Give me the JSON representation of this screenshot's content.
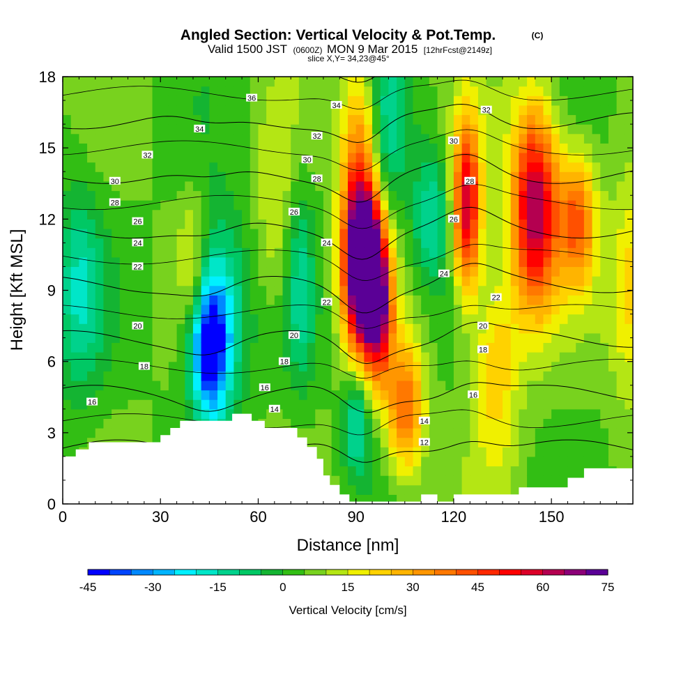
{
  "chart_data": {
    "type": "heatmap",
    "title": "Angled Section: Vertical Velocity & Pot.Temp.",
    "title_mark": "(C)",
    "subtitle_parts": [
      "Valid 1500 JST",
      "(0600Z)",
      "MON 9 Mar 2015",
      "[12hrFcst@2149z]"
    ],
    "slice_label": "slice X,Y= 34,23@45°",
    "xlabel": "Distance [nm]",
    "ylabel": "Height [Kft MSL]",
    "xlim": [
      0,
      175
    ],
    "ylim": [
      0,
      18
    ],
    "x_ticks": [
      0,
      30,
      60,
      90,
      120,
      150
    ],
    "y_ticks": [
      0,
      3,
      6,
      9,
      12,
      15,
      18
    ],
    "colorbar": {
      "label": "Vertical Velocity [cm/s]",
      "ticks": [
        -45,
        -30,
        -15,
        0,
        15,
        30,
        45,
        60,
        75
      ],
      "min": -45,
      "max": 75,
      "step": 5,
      "colors": [
        "#0000ff",
        "#0044ff",
        "#0088ff",
        "#00b4ff",
        "#00f0ff",
        "#00e6c8",
        "#00d28c",
        "#00c864",
        "#14b432",
        "#32be14",
        "#78d21e",
        "#b4e614",
        "#f0f000",
        "#ffd200",
        "#ffb400",
        "#ff9600",
        "#ff7800",
        "#ff5000",
        "#ff2800",
        "#ff0000",
        "#dc0028",
        "#b40050",
        "#8c0078",
        "#5a0096"
      ]
    },
    "velocity_cells": [
      {
        "x": 5,
        "y": 9,
        "v": -20,
        "sx": 5,
        "sy": 3
      },
      {
        "x": 45,
        "y": 6.5,
        "v": -42,
        "sx": 4,
        "sy": 2
      },
      {
        "x": 48,
        "y": 8,
        "v": -25,
        "sx": 6,
        "sy": 3
      },
      {
        "x": 73,
        "y": 9,
        "v": -15,
        "sx": 3,
        "sy": 3
      },
      {
        "x": 90,
        "y": 3.5,
        "v": -25,
        "sx": 3,
        "sy": 1.5
      },
      {
        "x": 100,
        "y": 16,
        "v": -15,
        "sx": 4,
        "sy": 3
      },
      {
        "x": 113,
        "y": 12,
        "v": -20,
        "sx": 4,
        "sy": 2
      },
      {
        "x": 93,
        "y": 10,
        "v": 75,
        "sx": 4,
        "sy": 2
      },
      {
        "x": 91,
        "y": 12,
        "v": 45,
        "sx": 4,
        "sy": 4
      },
      {
        "x": 97,
        "y": 8,
        "v": 45,
        "sx": 3,
        "sy": 2
      },
      {
        "x": 105,
        "y": 4,
        "v": 35,
        "sx": 4,
        "sy": 2
      },
      {
        "x": 124,
        "y": 12.5,
        "v": 55,
        "sx": 3,
        "sy": 2.5
      },
      {
        "x": 145,
        "y": 12.5,
        "v": 60,
        "sx": 5,
        "sy": 3
      },
      {
        "x": 158,
        "y": 12,
        "v": 35,
        "sx": 4,
        "sy": 2
      },
      {
        "x": 133,
        "y": 6,
        "v": 20,
        "sx": 5,
        "sy": 3
      },
      {
        "x": 175,
        "y": 9,
        "v": 20,
        "sx": 5,
        "sy": 3
      },
      {
        "x": 40,
        "y": 10,
        "v": 15,
        "sx": 3,
        "sy": 2
      },
      {
        "x": 65,
        "y": 12,
        "v": 10,
        "sx": 4,
        "sy": 3
      }
    ],
    "terrain": [
      [
        0,
        2
      ],
      [
        4,
        2
      ],
      [
        4,
        2.3
      ],
      [
        8,
        2.3
      ],
      [
        8,
        2.6
      ],
      [
        30,
        2.6
      ],
      [
        30,
        2.9
      ],
      [
        33,
        2.9
      ],
      [
        33,
        3.2
      ],
      [
        36,
        3.2
      ],
      [
        36,
        3.5
      ],
      [
        52,
        3.5
      ],
      [
        52,
        3.8
      ],
      [
        58,
        3.8
      ],
      [
        58,
        3.5
      ],
      [
        62,
        3.5
      ],
      [
        62,
        3.2
      ],
      [
        72,
        3.2
      ],
      [
        72,
        2.8
      ],
      [
        75,
        2.8
      ],
      [
        75,
        2.4
      ],
      [
        78,
        2.4
      ],
      [
        78,
        1.9
      ],
      [
        80,
        1.9
      ],
      [
        80,
        1.2
      ],
      [
        82,
        1.2
      ],
      [
        82,
        0.8
      ],
      [
        85,
        0.8
      ],
      [
        85,
        0.4
      ],
      [
        88,
        0.4
      ],
      [
        88,
        0.1
      ],
      [
        110,
        0.1
      ],
      [
        110,
        0.4
      ],
      [
        115,
        0.4
      ],
      [
        115,
        0.1
      ],
      [
        120,
        0.1
      ],
      [
        120,
        0.4
      ],
      [
        140,
        0.4
      ],
      [
        140,
        0.7
      ],
      [
        155,
        0.7
      ],
      [
        155,
        1.1
      ],
      [
        160,
        1.1
      ],
      [
        160,
        1.5
      ],
      [
        175,
        1.5
      ]
    ],
    "theta_levels": [
      12,
      14,
      16,
      18,
      20,
      22,
      24,
      26,
      28,
      30,
      32,
      34,
      36
    ],
    "theta_labels": [
      {
        "text": "36",
        "x": 58,
        "y": 17.1
      },
      {
        "text": "34",
        "x": 42,
        "y": 15.8
      },
      {
        "text": "34",
        "x": 84,
        "y": 16.8
      },
      {
        "text": "32",
        "x": 26,
        "y": 14.7
      },
      {
        "text": "32",
        "x": 78,
        "y": 15.5
      },
      {
        "text": "32",
        "x": 130,
        "y": 16.6
      },
      {
        "text": "30",
        "x": 16,
        "y": 13.6
      },
      {
        "text": "30",
        "x": 75,
        "y": 14.5
      },
      {
        "text": "30",
        "x": 120,
        "y": 15.3
      },
      {
        "text": "28",
        "x": 16,
        "y": 12.7
      },
      {
        "text": "28",
        "x": 78,
        "y": 13.7
      },
      {
        "text": "28",
        "x": 125,
        "y": 13.6
      },
      {
        "text": "26",
        "x": 23,
        "y": 11.9
      },
      {
        "text": "26",
        "x": 71,
        "y": 12.3
      },
      {
        "text": "26",
        "x": 120,
        "y": 12.0
      },
      {
        "text": "24",
        "x": 23,
        "y": 11.0
      },
      {
        "text": "24",
        "x": 81,
        "y": 11.0
      },
      {
        "text": "24",
        "x": 117,
        "y": 9.7
      },
      {
        "text": "22",
        "x": 23,
        "y": 10.0
      },
      {
        "text": "22",
        "x": 81,
        "y": 8.5
      },
      {
        "text": "22",
        "x": 133,
        "y": 8.7
      },
      {
        "text": "20",
        "x": 23,
        "y": 7.5
      },
      {
        "text": "20",
        "x": 71,
        "y": 7.1
      },
      {
        "text": "20",
        "x": 129,
        "y": 7.5
      },
      {
        "text": "18",
        "x": 25,
        "y": 5.8
      },
      {
        "text": "18",
        "x": 68,
        "y": 6.0
      },
      {
        "text": "18",
        "x": 129,
        "y": 6.5
      },
      {
        "text": "16",
        "x": 9,
        "y": 4.3
      },
      {
        "text": "16",
        "x": 62,
        "y": 4.9
      },
      {
        "text": "16",
        "x": 126,
        "y": 4.6
      },
      {
        "text": "14",
        "x": 65,
        "y": 4.0
      },
      {
        "text": "14",
        "x": 111,
        "y": 3.5
      },
      {
        "text": "12",
        "x": 111,
        "y": 2.6
      }
    ]
  }
}
